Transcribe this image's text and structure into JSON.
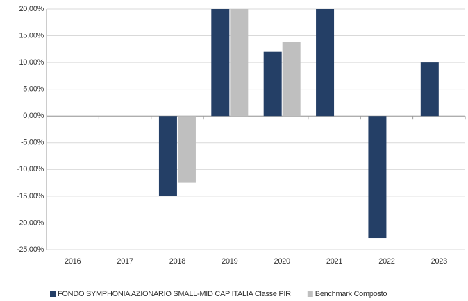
{
  "chart_data": {
    "type": "bar",
    "categories": [
      "2016",
      "2017",
      "2018",
      "2019",
      "2020",
      "2021",
      "2022",
      "2023"
    ],
    "series": [
      {
        "name": "FONDO SYMPHONIA AZIONARIO SMALL-MID CAP ITALIA Classe PIR",
        "color": "#243f66",
        "values": [
          null,
          null,
          -15,
          20,
          12,
          20,
          -22.8,
          10
        ]
      },
      {
        "name": "Benchmark Composto",
        "color": "#bfbfbf",
        "values": [
          null,
          null,
          -12.5,
          20,
          13.8,
          null,
          null,
          null
        ]
      }
    ],
    "ylim": [
      -25,
      20
    ],
    "yticks": [
      {
        "value": 20,
        "label": "20,00%"
      },
      {
        "value": 15,
        "label": "15,00%"
      },
      {
        "value": 10,
        "label": "10,00%"
      },
      {
        "value": 5,
        "label": "5,00%"
      },
      {
        "value": 0,
        "label": "0,00%"
      },
      {
        "value": -5,
        "label": "-5,00%"
      },
      {
        "value": -10,
        "label": "-10,00%"
      },
      {
        "value": -15,
        "label": "-15,00%"
      },
      {
        "value": -20,
        "label": "-20,00%"
      },
      {
        "value": -25,
        "label": "-25,00%"
      }
    ],
    "grid": true,
    "legend": "bottom"
  }
}
